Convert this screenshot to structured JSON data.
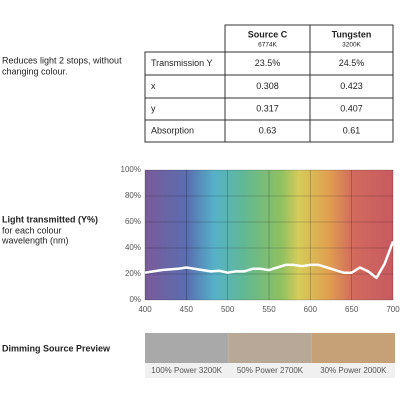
{
  "description": [
    "Reduces light 2 stops, without",
    "changing colour."
  ],
  "table": {
    "header": [
      {
        "title": "Source C",
        "sub": "6774K"
      },
      {
        "title": "Tungsten",
        "sub": "3200K"
      }
    ],
    "rows": [
      [
        "Transmission Y",
        "23.5%",
        "24.5%"
      ],
      [
        "x",
        "0.308",
        "0.423"
      ],
      [
        "y",
        "0.317",
        "0.407"
      ],
      [
        "Absorption",
        "0.63",
        "0.61"
      ]
    ]
  },
  "chart_label": {
    "title": "Light transmitted (Y%)",
    "lines": [
      "for each colour",
      "wavelength (nm)"
    ]
  },
  "chart_data": {
    "type": "line",
    "x": [
      400,
      410,
      420,
      430,
      440,
      450,
      460,
      470,
      480,
      490,
      500,
      510,
      520,
      530,
      540,
      550,
      560,
      570,
      580,
      590,
      600,
      610,
      620,
      630,
      640,
      650,
      660,
      670,
      680,
      690,
      700
    ],
    "values": [
      21,
      22,
      23,
      23.5,
      24,
      25,
      24,
      23,
      22,
      22.5,
      21,
      22,
      22,
      24,
      24,
      23,
      25,
      27,
      27,
      26,
      27,
      27,
      25,
      23,
      21,
      21,
      25,
      22,
      17,
      28,
      45
    ],
    "color": "#ffffff",
    "xlim": [
      400,
      700
    ],
    "ylim": [
      0,
      100
    ],
    "xticks": [
      400,
      450,
      500,
      550,
      600,
      650,
      700
    ],
    "yticks": [
      {
        "value": 0,
        "label": "0%"
      },
      {
        "value": 20,
        "label": "20%"
      },
      {
        "value": 40,
        "label": "40%"
      },
      {
        "value": 60,
        "label": "60%"
      },
      {
        "value": 80,
        "label": "80%"
      },
      {
        "value": 100,
        "label": "100%"
      }
    ],
    "grid": true
  },
  "preview": {
    "title": "Dimming Source Preview",
    "swatches": [
      {
        "label": "100% Power 3200K",
        "color": "#a9a9a9"
      },
      {
        "label": "50% Power 2700K",
        "color": "#b8a898"
      },
      {
        "label": "30% Power 2000K",
        "color": "#c6a177"
      }
    ]
  }
}
